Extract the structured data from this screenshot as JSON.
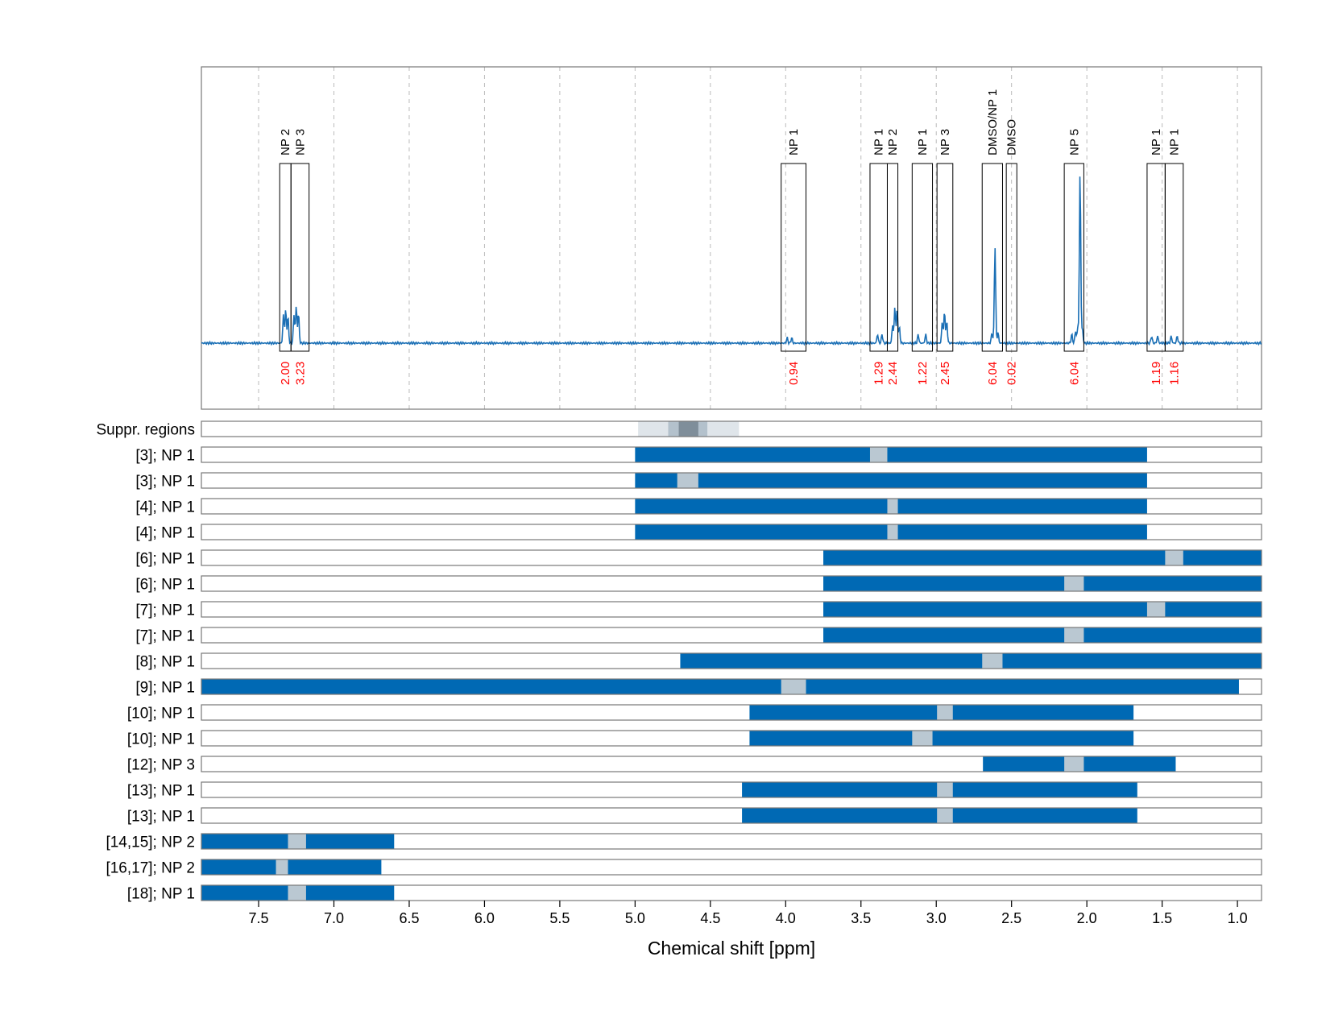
{
  "colors": {
    "spectrum": "#1a6fb5",
    "bar": "#0069b4",
    "gap": "#bac8d2",
    "integral": "#ff0000",
    "grid": "#bbbbbb",
    "suppr_light": "#dfe5ea",
    "suppr_mid": "#b3c1cc",
    "suppr_dark": "#7f8e9a"
  },
  "chart_data": {
    "type": "nmr-spectrum-with-signal-bars",
    "xlabel": "Chemical shift [ppm]",
    "xlim": [
      7.88,
      0.84
    ],
    "x_reversed": true,
    "grid": true,
    "ticks": [
      7.5,
      7.0,
      6.5,
      6.0,
      5.5,
      5.0,
      4.5,
      4.0,
      3.5,
      3.0,
      2.5,
      2.0,
      1.5,
      1.0
    ],
    "tick_labels": [
      "7.5",
      "7.0",
      "6.5",
      "6.0",
      "5.5",
      "5.0",
      "4.5",
      "4.0",
      "3.5",
      "3.0",
      "2.5",
      "2.0",
      "1.5",
      "1.0"
    ],
    "peaks": [
      {
        "ppm": 7.335,
        "height": 0.16
      },
      {
        "ppm": 7.32,
        "height": 0.19
      },
      {
        "ppm": 7.305,
        "height": 0.15
      },
      {
        "ppm": 7.265,
        "height": 0.16
      },
      {
        "ppm": 7.25,
        "height": 0.21
      },
      {
        "ppm": 7.235,
        "height": 0.17
      },
      {
        "ppm": 3.99,
        "height": 0.03
      },
      {
        "ppm": 3.96,
        "height": 0.03
      },
      {
        "ppm": 3.39,
        "height": 0.05
      },
      {
        "ppm": 3.36,
        "height": 0.05
      },
      {
        "ppm": 3.29,
        "height": 0.1
      },
      {
        "ppm": 3.275,
        "height": 0.2
      },
      {
        "ppm": 3.26,
        "height": 0.19
      },
      {
        "ppm": 3.245,
        "height": 0.09
      },
      {
        "ppm": 3.12,
        "height": 0.05
      },
      {
        "ppm": 3.07,
        "height": 0.05
      },
      {
        "ppm": 2.96,
        "height": 0.12
      },
      {
        "ppm": 2.945,
        "height": 0.18
      },
      {
        "ppm": 2.93,
        "height": 0.12
      },
      {
        "ppm": 2.63,
        "height": 0.06
      },
      {
        "ppm": 2.61,
        "height": 0.55
      },
      {
        "ppm": 2.59,
        "height": 0.06
      },
      {
        "ppm": 2.1,
        "height": 0.05
      },
      {
        "ppm": 2.075,
        "height": 0.07
      },
      {
        "ppm": 2.06,
        "height": 0.09
      },
      {
        "ppm": 2.045,
        "height": 0.98
      },
      {
        "ppm": 2.03,
        "height": 0.08
      },
      {
        "ppm": 1.57,
        "height": 0.04
      },
      {
        "ppm": 1.53,
        "height": 0.04
      },
      {
        "ppm": 1.44,
        "height": 0.04
      },
      {
        "ppm": 1.4,
        "height": 0.04
      }
    ],
    "integrals": [
      {
        "from": 7.36,
        "to": 7.285,
        "label": "NP 2",
        "value": "2.00"
      },
      {
        "from": 7.285,
        "to": 7.165,
        "label": "NP 3",
        "value": "3.23"
      },
      {
        "from": 4.03,
        "to": 3.865,
        "label": "NP 1",
        "value": "0.94"
      },
      {
        "from": 3.44,
        "to": 3.325,
        "label": "NP 1",
        "value": "1.29"
      },
      {
        "from": 3.325,
        "to": 3.255,
        "label": "NP 2",
        "value": "2.44"
      },
      {
        "from": 3.16,
        "to": 3.025,
        "label": "NP 1",
        "value": "1.22"
      },
      {
        "from": 2.995,
        "to": 2.89,
        "label": "NP 3",
        "value": "2.45"
      },
      {
        "from": 2.695,
        "to": 2.56,
        "label": "DMSO/NP 1",
        "value": "6.04"
      },
      {
        "from": 2.535,
        "to": 2.465,
        "label": "DMSO",
        "value": "0.02"
      },
      {
        "from": 2.15,
        "to": 2.02,
        "label": "NP 5",
        "value": "6.04"
      },
      {
        "from": 1.6,
        "to": 1.48,
        "label": "NP 1",
        "value": "1.19"
      },
      {
        "from": 1.48,
        "to": 1.36,
        "label": "NP 1",
        "value": "1.16"
      }
    ],
    "suppressed_regions": [
      {
        "from": 4.98,
        "to": 4.31,
        "level": "light"
      },
      {
        "from": 4.78,
        "to": 4.52,
        "level": "mid"
      },
      {
        "from": 4.71,
        "to": 4.58,
        "level": "dark"
      }
    ],
    "suppressed_label": "Suppr. regions",
    "rows": [
      {
        "label": "[3]; NP 1",
        "from": 5.0,
        "to": 1.6,
        "gap": [
          3.44,
          3.325
        ]
      },
      {
        "label": "[3]; NP 1",
        "from": 5.0,
        "to": 1.6,
        "gap": [
          4.72,
          4.58
        ]
      },
      {
        "label": "[4]; NP 1",
        "from": 5.0,
        "to": 1.6,
        "gap": [
          3.325,
          3.255
        ]
      },
      {
        "label": "[4]; NP 1",
        "from": 5.0,
        "to": 1.6,
        "gap": [
          3.325,
          3.255
        ]
      },
      {
        "label": "[6]; NP 1",
        "from": 3.75,
        "to": 0.84,
        "gap": [
          1.48,
          1.36
        ]
      },
      {
        "label": "[6]; NP 1",
        "from": 3.75,
        "to": 0.84,
        "gap": [
          2.15,
          2.02
        ]
      },
      {
        "label": "[7]; NP 1",
        "from": 3.75,
        "to": 0.84,
        "gap": [
          1.6,
          1.48
        ]
      },
      {
        "label": "[7]; NP 1",
        "from": 3.75,
        "to": 0.84,
        "gap": [
          2.15,
          2.02
        ]
      },
      {
        "label": "[8]; NP 1",
        "from": 4.7,
        "to": 0.84,
        "gap": [
          2.695,
          2.56
        ]
      },
      {
        "label": "[9]; NP 1",
        "from": 7.88,
        "to": 0.99,
        "gap": [
          4.03,
          3.865
        ]
      },
      {
        "label": "[10]; NP 1",
        "from": 4.24,
        "to": 1.69,
        "gap": [
          2.995,
          2.89
        ]
      },
      {
        "label": "[10]; NP 1",
        "from": 4.24,
        "to": 1.69,
        "gap": [
          3.16,
          3.025
        ]
      },
      {
        "label": "[12]; NP 3",
        "from": 2.69,
        "to": 1.41,
        "gap": [
          2.15,
          2.02
        ]
      },
      {
        "label": "[13]; NP 1",
        "from": 4.29,
        "to": 1.665,
        "gap": [
          2.995,
          2.89
        ]
      },
      {
        "label": "[13]; NP 1",
        "from": 4.29,
        "to": 1.665,
        "gap": [
          2.995,
          2.89
        ]
      },
      {
        "label": "[14,15]; NP 2",
        "from": 7.88,
        "to": 6.6,
        "gap": [
          7.305,
          7.185
        ]
      },
      {
        "label": "[16,17]; NP 2",
        "from": 7.88,
        "to": 6.685,
        "gap": [
          7.385,
          7.305
        ]
      },
      {
        "label": "[18]; NP 1",
        "from": 7.88,
        "to": 6.6,
        "gap": [
          7.305,
          7.185
        ]
      }
    ]
  }
}
